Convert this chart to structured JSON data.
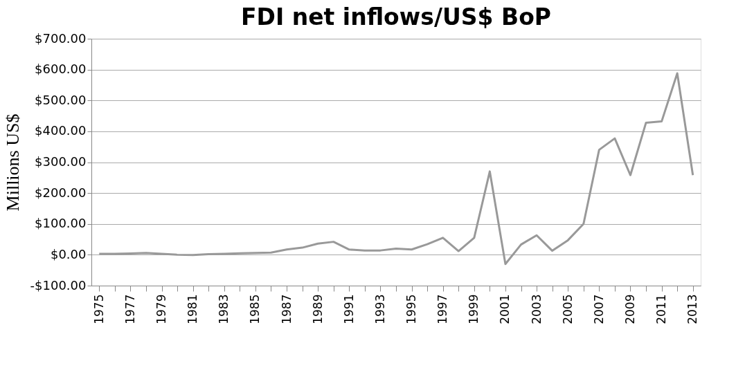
{
  "chart_data": {
    "type": "line",
    "title": "FDI net inflows/US$ BoP",
    "ylabel": "Millions US$",
    "categories": [
      "1975",
      null,
      "1977",
      null,
      "1979",
      null,
      "1981",
      null,
      "1983",
      null,
      "1985",
      null,
      "1987",
      null,
      "1989",
      null,
      "1991",
      null,
      "1993",
      null,
      "1995",
      null,
      "1997",
      null,
      "1999",
      null,
      "2001",
      null,
      "2003",
      null,
      "2005",
      null,
      "2007",
      null,
      "2009",
      null,
      "2011",
      null,
      "2013"
    ],
    "series": [
      {
        "color": "#999999",
        "values": [
          3,
          3,
          4,
          6,
          3,
          0,
          -1,
          2,
          3,
          5,
          6,
          7,
          17,
          23,
          36,
          42,
          17,
          14,
          14,
          20,
          17,
          34,
          55,
          12,
          55,
          270,
          -30,
          33,
          63,
          13,
          47,
          100,
          340,
          377,
          258,
          428,
          432,
          588,
          258
        ]
      }
    ],
    "ylim": [
      -100,
      700
    ],
    "yticks": [
      {
        "value": -100,
        "label": "-$100.00"
      },
      {
        "value": 0,
        "label": "$0.00"
      },
      {
        "value": 100,
        "label": "$100.00"
      },
      {
        "value": 200,
        "label": "$200.00"
      },
      {
        "value": 300,
        "label": "$300.00"
      },
      {
        "value": 400,
        "label": "$400.00"
      },
      {
        "value": 500,
        "label": "$500.00"
      },
      {
        "value": 600,
        "label": "$600.00"
      },
      {
        "value": 700,
        "label": "$700.00"
      }
    ],
    "grid": "y",
    "marker": "none",
    "line_style": "solid"
  }
}
